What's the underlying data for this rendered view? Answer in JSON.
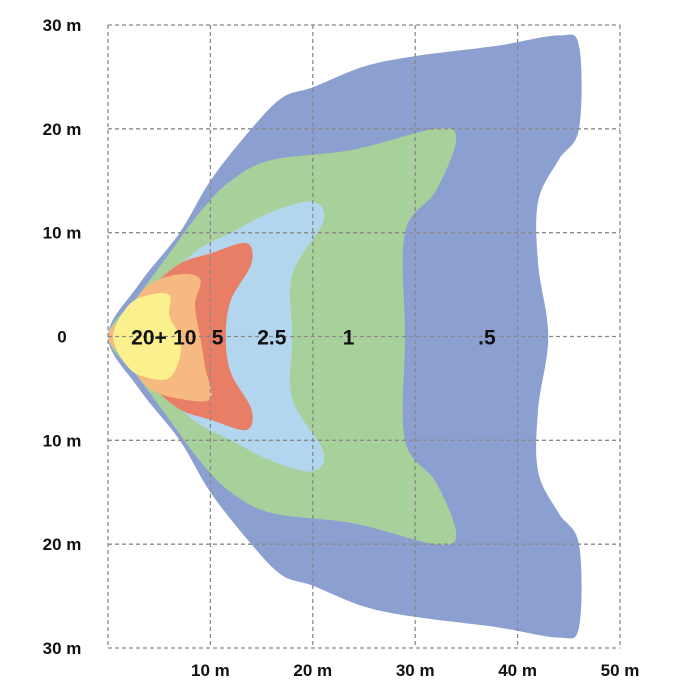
{
  "chart_data": {
    "type": "area",
    "title": "",
    "xlabel": "",
    "ylabel": "",
    "xlim": [
      0,
      50
    ],
    "ylim": [
      -30,
      30
    ],
    "grid": true,
    "x_ticks": [
      {
        "value": 10,
        "label": "10 m"
      },
      {
        "value": 20,
        "label": "20 m"
      },
      {
        "value": 30,
        "label": "30 m"
      },
      {
        "value": 40,
        "label": "40 m"
      },
      {
        "value": 50,
        "label": "50 m"
      }
    ],
    "y_ticks": [
      {
        "value": 30,
        "label": "30 m"
      },
      {
        "value": 20,
        "label": "20 m"
      },
      {
        "value": 10,
        "label": "10 m"
      },
      {
        "value": 0,
        "label": "0"
      },
      {
        "value": -10,
        "label": "10 m"
      },
      {
        "value": -20,
        "label": "20 m"
      },
      {
        "value": -30,
        "label": "30 m"
      }
    ],
    "zones": [
      {
        "label": ".5",
        "color": "#8ba0d1",
        "label_at": [
          37,
          0
        ],
        "outline": [
          [
            0,
            0
          ],
          [
            3,
            5
          ],
          [
            7,
            10
          ],
          [
            10,
            15
          ],
          [
            14,
            20
          ],
          [
            17,
            23
          ],
          [
            20,
            24
          ],
          [
            25,
            26
          ],
          [
            30,
            27
          ],
          [
            38,
            28
          ],
          [
            44,
            29
          ],
          [
            46,
            28
          ],
          [
            46,
            20
          ],
          [
            44,
            17
          ],
          [
            42,
            13
          ],
          [
            42,
            7
          ],
          [
            43,
            0
          ],
          [
            42,
            -7
          ],
          [
            42,
            -13
          ],
          [
            44,
            -17
          ],
          [
            46,
            -20
          ],
          [
            46,
            -28
          ],
          [
            44,
            -29
          ],
          [
            38,
            -28
          ],
          [
            30,
            -27
          ],
          [
            25,
            -26
          ],
          [
            20,
            -24
          ],
          [
            17,
            -23
          ],
          [
            14,
            -20
          ],
          [
            10,
            -15
          ],
          [
            7,
            -10
          ],
          [
            3,
            -5
          ]
        ]
      },
      {
        "label": "1",
        "color": "#a8d09a",
        "label_at": [
          23.5,
          0
        ],
        "outline": [
          [
            0,
            0
          ],
          [
            3,
            4
          ],
          [
            6,
            8
          ],
          [
            9,
            12
          ],
          [
            12,
            15
          ],
          [
            16,
            17
          ],
          [
            24,
            18
          ],
          [
            32,
            20
          ],
          [
            34,
            19
          ],
          [
            32,
            14
          ],
          [
            29,
            10
          ],
          [
            29,
            0
          ],
          [
            29,
            -10
          ],
          [
            32,
            -14
          ],
          [
            34,
            -19
          ],
          [
            32,
            -20
          ],
          [
            24,
            -18
          ],
          [
            16,
            -17
          ],
          [
            12,
            -15
          ],
          [
            9,
            -12
          ],
          [
            6,
            -8
          ],
          [
            3,
            -4
          ]
        ]
      },
      {
        "label": "2.5",
        "color": "#b1d6ee",
        "label_at": [
          16,
          0
        ],
        "outline": [
          [
            0,
            0
          ],
          [
            3,
            3
          ],
          [
            6,
            6
          ],
          [
            9,
            8.5
          ],
          [
            12,
            10
          ],
          [
            16,
            12
          ],
          [
            20,
            13
          ],
          [
            21,
            11
          ],
          [
            18,
            6
          ],
          [
            18,
            0
          ],
          [
            18,
            -6
          ],
          [
            21,
            -11
          ],
          [
            20,
            -13
          ],
          [
            16,
            -12
          ],
          [
            12,
            -10
          ],
          [
            9,
            -8.5
          ],
          [
            6,
            -6
          ],
          [
            3,
            -3
          ]
        ]
      },
      {
        "label": "5",
        "color": "#e97e67",
        "label_at": [
          10.7,
          0
        ],
        "outline": [
          [
            0,
            0
          ],
          [
            2,
            2
          ],
          [
            4,
            4.5
          ],
          [
            7,
            7
          ],
          [
            10,
            8
          ],
          [
            13.5,
            9
          ],
          [
            14,
            7
          ],
          [
            12,
            3.5
          ],
          [
            11.5,
            0
          ],
          [
            12,
            -3.5
          ],
          [
            14,
            -7
          ],
          [
            13.5,
            -9
          ],
          [
            10,
            -8
          ],
          [
            7,
            -7
          ],
          [
            4,
            -4.5
          ],
          [
            2,
            -2
          ]
        ]
      },
      {
        "label": "10",
        "color": "#f6b981",
        "label_at": [
          7.5,
          0
        ],
        "outline": [
          [
            0,
            0
          ],
          [
            2,
            2.5
          ],
          [
            4,
            5
          ],
          [
            7,
            6
          ],
          [
            9,
            5.5
          ],
          [
            8.5,
            3
          ],
          [
            9,
            0
          ],
          [
            9.5,
            -3
          ],
          [
            10,
            -6
          ],
          [
            7,
            -6
          ],
          [
            4,
            -5
          ],
          [
            2,
            -2.5
          ]
        ]
      },
      {
        "label": "20+",
        "color": "#fbf08e",
        "label_at": [
          4,
          0
        ],
        "outline": [
          [
            0.5,
            0
          ],
          [
            2,
            3
          ],
          [
            4,
            4
          ],
          [
            6,
            4
          ],
          [
            6,
            2
          ],
          [
            7,
            0
          ],
          [
            7,
            -2
          ],
          [
            6,
            -4
          ],
          [
            4,
            -4
          ],
          [
            2,
            -3
          ]
        ]
      }
    ]
  }
}
